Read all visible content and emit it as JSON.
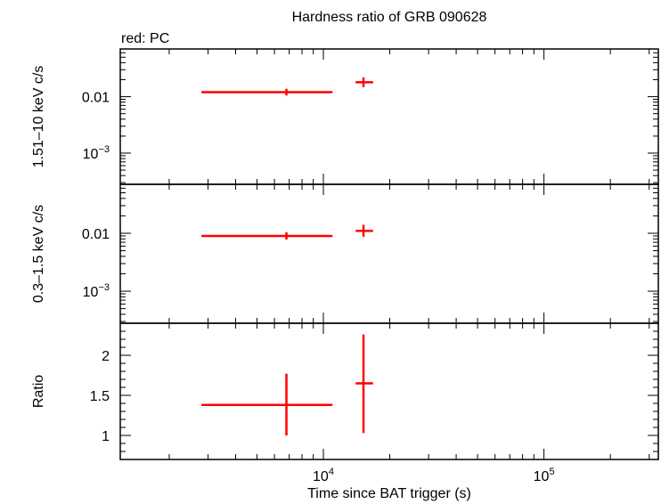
{
  "chart_data": {
    "type": "scatter",
    "title": "Hardness ratio of GRB 090628",
    "legend_note": "red: PC",
    "xlabel": "Time since BAT trigger (s)",
    "x_scale": "log",
    "xlim": [
      1200,
      330000
    ],
    "x_major_ticks": [
      {
        "value": 10000,
        "base": "10",
        "exp": "4"
      },
      {
        "value": 100000,
        "base": "10",
        "exp": "5"
      }
    ],
    "panels": [
      {
        "ylabel": "1.51–10 keV c/s",
        "y_scale": "log",
        "ylim": [
          0.00028,
          0.07
        ],
        "y_ticks": [
          {
            "value": 0.01,
            "text": "0.01"
          },
          {
            "value": 0.001,
            "base": "10",
            "exp": "−3"
          }
        ],
        "points": [
          {
            "x": 6800,
            "xerr": [
              2800,
              11000
            ],
            "y": 0.012,
            "yerr": [
              0.0105,
              0.0138
            ]
          },
          {
            "x": 15200,
            "xerr": [
              14000,
              16800
            ],
            "y": 0.018,
            "yerr": [
              0.0148,
              0.022
            ]
          }
        ]
      },
      {
        "ylabel": "0.3–1.5 keV c/s",
        "y_scale": "log",
        "ylim": [
          0.00028,
          0.07
        ],
        "y_ticks": [
          {
            "value": 0.01,
            "text": "0.01"
          },
          {
            "value": 0.001,
            "base": "10",
            "exp": "−3"
          }
        ],
        "points": [
          {
            "x": 6800,
            "xerr": [
              2800,
              11000
            ],
            "y": 0.009,
            "yerr": [
              0.0078,
              0.0104
            ]
          },
          {
            "x": 15200,
            "xerr": [
              14000,
              16800
            ],
            "y": 0.011,
            "yerr": [
              0.0087,
              0.014
            ]
          }
        ]
      },
      {
        "ylabel": "Ratio",
        "y_scale": "linear",
        "ylim": [
          0.7,
          2.4
        ],
        "y_ticks": [
          {
            "value": 1,
            "text": "1"
          },
          {
            "value": 1.5,
            "text": "1.5"
          },
          {
            "value": 2,
            "text": "2"
          }
        ],
        "points": [
          {
            "x": 6800,
            "xerr": [
              2800,
              11000
            ],
            "y": 1.38,
            "yerr": [
              1.0,
              1.77
            ]
          },
          {
            "x": 15200,
            "xerr": [
              14000,
              16800
            ],
            "y": 1.65,
            "yerr": [
              1.03,
              2.26
            ]
          }
        ]
      }
    ],
    "colors": {
      "series": "#ff0000",
      "axes": "#000000"
    }
  }
}
